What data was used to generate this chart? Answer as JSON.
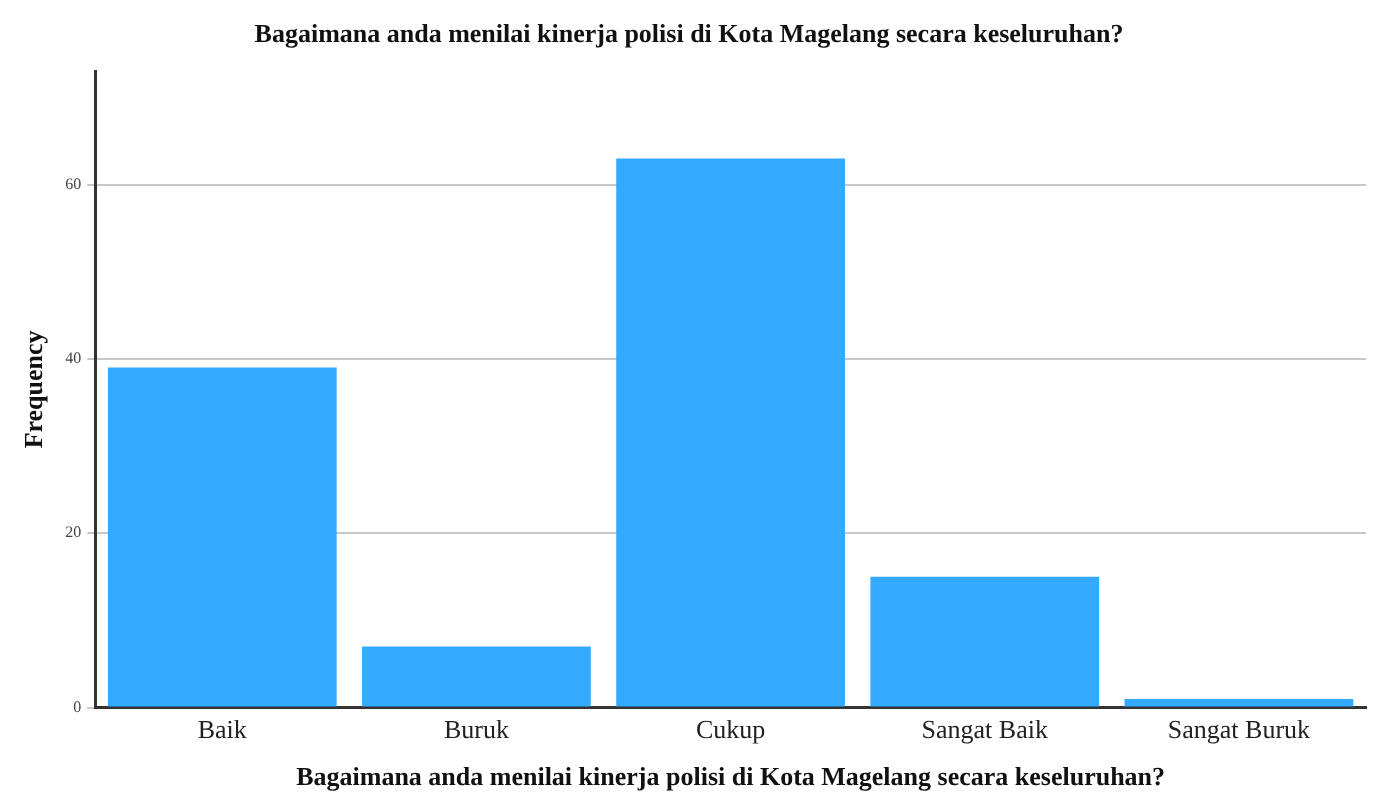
{
  "chart_data": {
    "type": "bar",
    "title": "Bagaimana anda menilai kinerja polisi di Kota Magelang secara keseluruhan?",
    "xlabel": "Bagaimana anda menilai kinerja polisi di Kota Magelang secara keseluruhan?",
    "ylabel": "Frequency",
    "categories": [
      "Baik",
      "Buruk",
      "Cukup",
      "Sangat Baik",
      "Sangat Buruk"
    ],
    "values": [
      39,
      7,
      63,
      15,
      1
    ],
    "color": "#33aaff",
    "ylim": [
      0,
      73
    ],
    "yticks": [
      0,
      20,
      40,
      60
    ],
    "grid": "y"
  }
}
